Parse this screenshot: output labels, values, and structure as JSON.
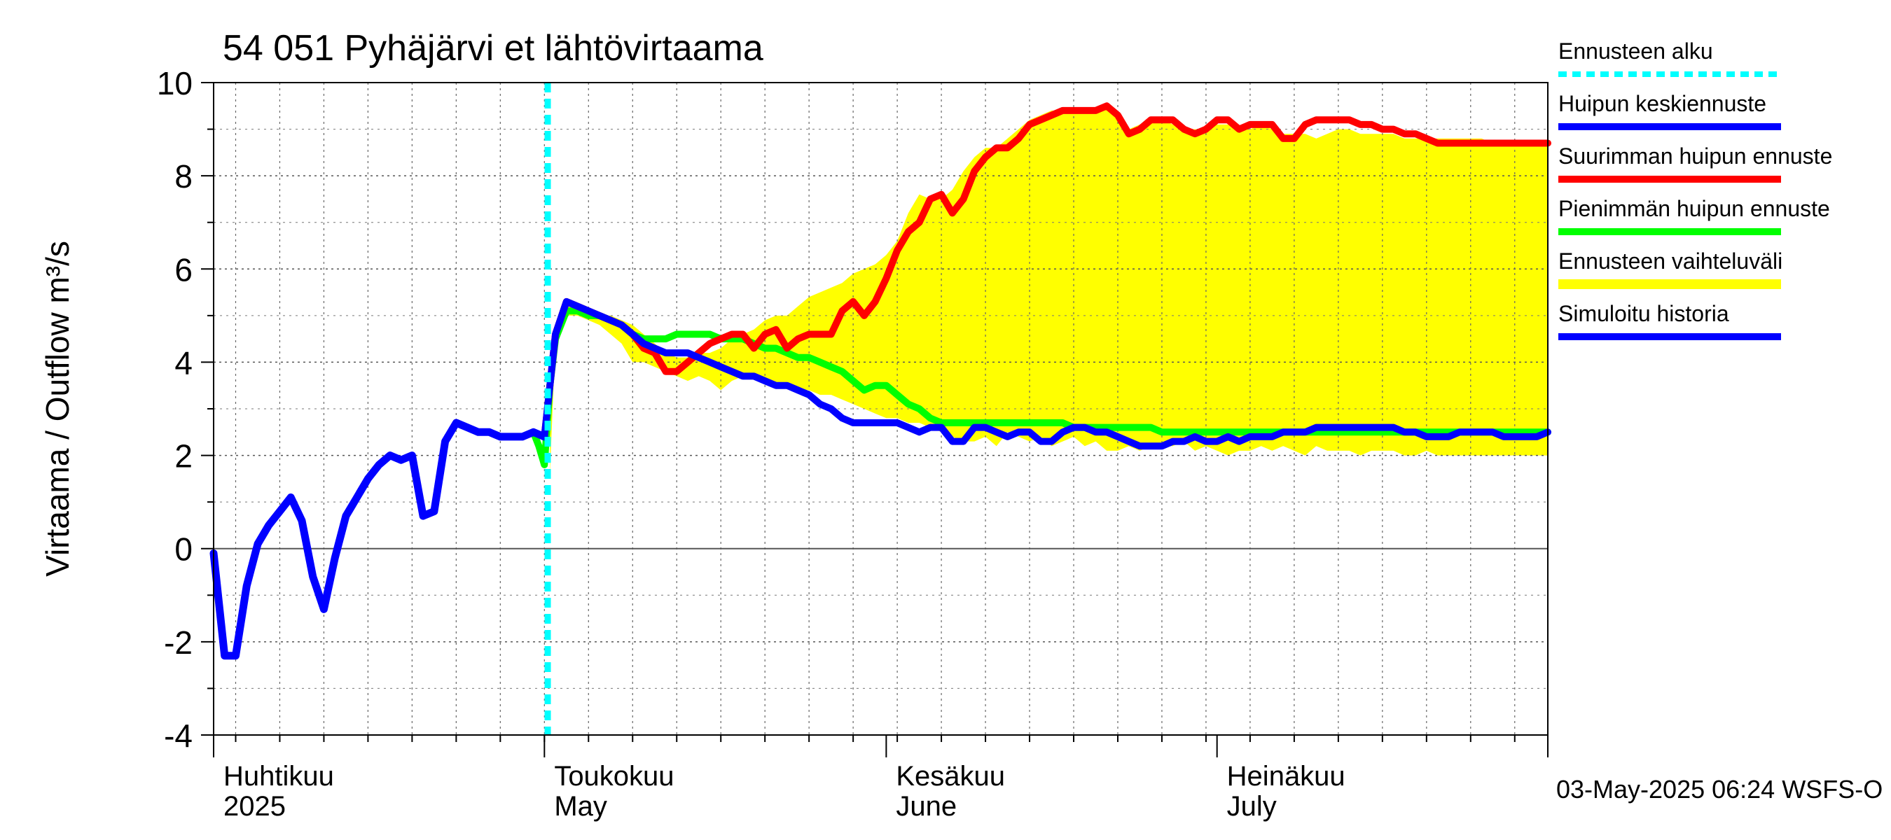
{
  "chart_data": {
    "type": "line",
    "title": "54 051 Pyhäjärvi et lähtövirtaama",
    "ylabel": "Virtaama / Outflow    m³/s",
    "xlabel": "",
    "ylim": [
      -4,
      10
    ],
    "yticks": [
      -4,
      -2,
      0,
      2,
      4,
      6,
      8,
      10
    ],
    "x_unit": "day of year 2025",
    "xlim": [
      91,
      212
    ],
    "month_ticks": [
      91,
      121,
      152,
      182,
      212
    ],
    "month_labels": [
      {
        "day": 91,
        "fi": "Huhtikuu",
        "en": "2025"
      },
      {
        "day": 121,
        "fi": "Toukokuu",
        "en": "May"
      },
      {
        "day": 152,
        "fi": "Kesäkuu",
        "en": "June"
      },
      {
        "day": 182,
        "fi": "Heinäkuu",
        "en": "July"
      }
    ],
    "forecast_start_day": 121.3,
    "footer": "03-May-2025 06:24 WSFS-O",
    "legend_position": "right",
    "legend": [
      {
        "label": "Ennusteen alku",
        "color": "#00ffff",
        "style": "dotted"
      },
      {
        "label": "Huipun keskiennuste",
        "color": "#0000ff",
        "style": "solid"
      },
      {
        "label": "Suurimman huipun ennuste",
        "color": "#ff0000",
        "style": "solid"
      },
      {
        "label": "Pienimmän huipun ennuste",
        "color": "#00ff00",
        "style": "solid"
      },
      {
        "label": "Ennusteen vaihteluväli",
        "color": "#ffff00",
        "style": "band"
      },
      {
        "label": "Simuloitu historia",
        "color": "#0000ff",
        "style": "solid"
      }
    ],
    "series": [
      {
        "name": "Ennusteen vaihteluväli",
        "type": "band",
        "color": "#ffff00",
        "x": [
          121.5,
          122,
          123,
          124,
          125,
          126,
          127,
          128,
          129,
          130,
          131,
          132,
          133,
          134,
          135,
          136,
          137,
          138,
          139,
          140,
          141,
          142,
          143,
          144,
          145,
          146,
          147,
          148,
          149,
          150,
          151,
          152,
          153,
          154,
          155,
          156,
          157,
          158,
          159,
          160,
          161,
          162,
          163,
          164,
          165,
          166,
          167,
          168,
          169,
          170,
          171,
          172,
          173,
          174,
          175,
          176,
          177,
          178,
          179,
          180,
          181,
          182,
          183,
          184,
          185,
          186,
          187,
          188,
          189,
          190,
          191,
          192,
          193,
          194,
          195,
          196,
          197,
          198,
          199,
          200,
          201,
          202,
          203,
          204,
          205,
          206,
          207,
          208,
          209,
          210,
          211,
          212
        ],
        "upper": [
          4.0,
          4.5,
          5.2,
          5.2,
          5.1,
          5.0,
          5.0,
          4.9,
          4.8,
          4.6,
          4.4,
          4.2,
          4.1,
          4.1,
          4.2,
          4.2,
          4.3,
          4.5,
          4.6,
          4.7,
          4.9,
          5.0,
          5.0,
          5.2,
          5.4,
          5.5,
          5.6,
          5.7,
          5.9,
          6.0,
          6.1,
          6.3,
          6.6,
          7.2,
          7.6,
          7.5,
          7.5,
          7.7,
          8.1,
          8.4,
          8.6,
          8.6,
          8.8,
          9.0,
          9.2,
          9.3,
          9.4,
          9.4,
          9.4,
          9.4,
          9.4,
          9.5,
          9.3,
          9.0,
          9.1,
          9.2,
          9.2,
          9.1,
          9.0,
          9.0,
          9.0,
          9.1,
          9.1,
          9.0,
          9.0,
          9.1,
          9.0,
          8.9,
          8.9,
          8.9,
          8.8,
          8.9,
          9.0,
          9.0,
          8.9,
          8.9,
          8.9,
          8.9,
          8.8,
          8.8,
          8.8,
          8.8,
          8.8,
          8.8,
          8.8,
          8.8,
          8.7,
          8.7,
          8.7,
          8.7,
          8.7,
          8.7
        ],
        "lower": [
          1.6,
          4.5,
          5.0,
          5.0,
          4.9,
          4.8,
          4.6,
          4.4,
          4.0,
          4.0,
          3.9,
          3.8,
          3.7,
          3.6,
          3.7,
          3.6,
          3.4,
          3.6,
          3.7,
          3.7,
          3.6,
          3.5,
          3.5,
          3.4,
          3.4,
          3.3,
          3.3,
          3.2,
          3.1,
          3.0,
          2.9,
          2.8,
          2.8,
          2.7,
          2.7,
          2.6,
          2.5,
          2.4,
          2.3,
          2.3,
          2.4,
          2.2,
          2.5,
          2.4,
          2.3,
          2.4,
          2.2,
          2.3,
          2.4,
          2.2,
          2.3,
          2.1,
          2.1,
          2.2,
          2.1,
          2.2,
          2.2,
          2.2,
          2.3,
          2.1,
          2.2,
          2.1,
          2.0,
          2.1,
          2.1,
          2.2,
          2.1,
          2.2,
          2.1,
          2.0,
          2.2,
          2.1,
          2.1,
          2.1,
          2.0,
          2.1,
          2.1,
          2.1,
          2.0,
          2.0,
          2.1,
          2.0,
          2.0,
          2.0,
          2.0,
          2.0,
          2.0,
          2.0,
          2.0,
          2.0,
          2.0,
          2.0
        ]
      },
      {
        "name": "Suurimman huipun ennuste",
        "color": "#ff0000",
        "x": [
          121,
          122,
          123,
          124,
          125,
          126,
          127,
          128,
          129,
          130,
          131,
          132,
          133,
          134,
          135,
          136,
          137,
          138,
          139,
          140,
          141,
          142,
          143,
          144,
          145,
          146,
          147,
          148,
          149,
          150,
          151,
          152,
          153,
          154,
          155,
          156,
          157,
          158,
          159,
          160,
          161,
          162,
          163,
          164,
          165,
          166,
          167,
          168,
          169,
          170,
          171,
          172,
          173,
          174,
          175,
          176,
          177,
          178,
          179,
          180,
          181,
          182,
          183,
          184,
          185,
          186,
          187,
          188,
          189,
          190,
          191,
          192,
          193,
          194,
          195,
          196,
          197,
          198,
          199,
          200,
          201,
          202,
          203,
          204,
          205,
          206,
          207,
          208,
          209,
          210,
          211,
          212
        ],
        "y": [
          2.4,
          4.6,
          5.3,
          5.2,
          5.1,
          5.0,
          4.9,
          4.8,
          4.6,
          4.3,
          4.2,
          3.8,
          3.8,
          4.0,
          4.2,
          4.4,
          4.5,
          4.6,
          4.6,
          4.3,
          4.6,
          4.7,
          4.3,
          4.5,
          4.6,
          4.6,
          4.6,
          5.1,
          5.3,
          5.0,
          5.3,
          5.8,
          6.4,
          6.8,
          7.0,
          7.5,
          7.6,
          7.2,
          7.5,
          8.1,
          8.4,
          8.6,
          8.6,
          8.8,
          9.1,
          9.2,
          9.3,
          9.4,
          9.4,
          9.4,
          9.4,
          9.5,
          9.3,
          8.9,
          9.0,
          9.2,
          9.2,
          9.2,
          9.0,
          8.9,
          9.0,
          9.2,
          9.2,
          9.0,
          9.1,
          9.1,
          9.1,
          8.8,
          8.8,
          9.1,
          9.2,
          9.2,
          9.2,
          9.2,
          9.1,
          9.1,
          9.0,
          9.0,
          8.9,
          8.9,
          8.8,
          8.7,
          8.7,
          8.7,
          8.7,
          8.7,
          8.7,
          8.7,
          8.7,
          8.7,
          8.7,
          8.7
        ]
      },
      {
        "name": "Pienimmän huipun ennuste",
        "color": "#00ff00",
        "x": [
          120,
          120.5,
          121,
          121.5,
          122,
          123,
          124,
          125,
          126,
          127,
          128,
          129,
          130,
          131,
          132,
          133,
          134,
          135,
          136,
          137,
          138,
          139,
          140,
          141,
          142,
          143,
          144,
          145,
          146,
          147,
          148,
          149,
          150,
          151,
          152,
          153,
          154,
          155,
          156,
          157,
          158,
          159,
          160,
          161,
          162,
          163,
          164,
          165,
          166,
          167,
          168,
          169,
          170,
          171,
          172,
          173,
          174,
          175,
          176,
          177,
          178,
          179,
          180,
          181,
          182,
          183,
          184,
          185,
          186,
          187,
          188,
          189,
          190,
          191,
          192,
          193,
          194,
          195,
          196,
          197,
          198,
          199,
          200,
          201,
          202,
          203,
          204,
          205,
          206,
          207,
          208,
          209,
          210,
          211,
          212
        ],
        "y": [
          2.5,
          2.2,
          1.8,
          3.5,
          4.5,
          5.1,
          5.1,
          5.0,
          5.0,
          4.9,
          4.8,
          4.6,
          4.5,
          4.5,
          4.5,
          4.6,
          4.6,
          4.6,
          4.6,
          4.5,
          4.5,
          4.5,
          4.4,
          4.3,
          4.3,
          4.2,
          4.1,
          4.1,
          4.0,
          3.9,
          3.8,
          3.6,
          3.4,
          3.5,
          3.5,
          3.3,
          3.1,
          3.0,
          2.8,
          2.7,
          2.7,
          2.7,
          2.7,
          2.7,
          2.7,
          2.7,
          2.7,
          2.7,
          2.7,
          2.7,
          2.7,
          2.6,
          2.6,
          2.6,
          2.6,
          2.6,
          2.6,
          2.6,
          2.6,
          2.5,
          2.5,
          2.5,
          2.5,
          2.5,
          2.5,
          2.5,
          2.5,
          2.5,
          2.5,
          2.5,
          2.5,
          2.5,
          2.5,
          2.5,
          2.5,
          2.5,
          2.5,
          2.5,
          2.5,
          2.5,
          2.5,
          2.5,
          2.5,
          2.5,
          2.5,
          2.5,
          2.5,
          2.5,
          2.5,
          2.5,
          2.5,
          2.5,
          2.5,
          2.5,
          2.5
        ]
      },
      {
        "name": "Huipun keskiennuste",
        "color": "#0000ff",
        "x": [
          121,
          122,
          123,
          124,
          125,
          126,
          127,
          128,
          129,
          130,
          131,
          132,
          133,
          134,
          135,
          136,
          137,
          138,
          139,
          140,
          141,
          142,
          143,
          144,
          145,
          146,
          147,
          148,
          149,
          150,
          151,
          152,
          153,
          154,
          155,
          156,
          157,
          158,
          159,
          160,
          161,
          162,
          163,
          164,
          165,
          166,
          167,
          168,
          169,
          170,
          171,
          172,
          173,
          174,
          175,
          176,
          177,
          178,
          179,
          180,
          181,
          182,
          183,
          184,
          185,
          186,
          187,
          188,
          189,
          190,
          191,
          192,
          193,
          194,
          195,
          196,
          197,
          198,
          199,
          200,
          201,
          202,
          203,
          204,
          205,
          206,
          207,
          208,
          209,
          210,
          211,
          212
        ],
        "y": [
          2.4,
          4.6,
          5.3,
          5.2,
          5.1,
          5.0,
          4.9,
          4.8,
          4.6,
          4.4,
          4.3,
          4.2,
          4.2,
          4.2,
          4.1,
          4.0,
          3.9,
          3.8,
          3.7,
          3.7,
          3.6,
          3.5,
          3.5,
          3.4,
          3.3,
          3.1,
          3.0,
          2.8,
          2.7,
          2.7,
          2.7,
          2.7,
          2.7,
          2.6,
          2.5,
          2.6,
          2.6,
          2.3,
          2.3,
          2.6,
          2.6,
          2.5,
          2.4,
          2.5,
          2.5,
          2.3,
          2.3,
          2.5,
          2.6,
          2.6,
          2.5,
          2.5,
          2.4,
          2.3,
          2.2,
          2.2,
          2.2,
          2.3,
          2.3,
          2.4,
          2.3,
          2.3,
          2.4,
          2.3,
          2.4,
          2.4,
          2.4,
          2.5,
          2.5,
          2.5,
          2.6,
          2.6,
          2.6,
          2.6,
          2.6,
          2.6,
          2.6,
          2.6,
          2.5,
          2.5,
          2.4,
          2.4,
          2.4,
          2.5,
          2.5,
          2.5,
          2.5,
          2.4,
          2.4,
          2.4,
          2.4,
          2.5
        ]
      },
      {
        "name": "Simuloitu historia",
        "color": "#0000ff",
        "x": [
          91,
          92,
          93,
          94,
          95,
          96,
          97,
          98,
          99,
          100,
          101,
          102,
          103,
          104,
          105,
          106,
          107,
          108,
          109,
          110,
          111,
          112,
          113,
          114,
          115,
          116,
          117,
          118,
          119,
          120,
          121
        ],
        "y": [
          -0.1,
          -2.3,
          -2.3,
          -0.8,
          0.1,
          0.5,
          0.8,
          1.1,
          0.6,
          -0.6,
          -1.3,
          -0.2,
          0.7,
          1.1,
          1.5,
          1.8,
          2.0,
          1.9,
          2.0,
          0.7,
          0.8,
          2.3,
          2.7,
          2.6,
          2.5,
          2.5,
          2.4,
          2.4,
          2.4,
          2.5,
          2.4
        ]
      }
    ]
  }
}
